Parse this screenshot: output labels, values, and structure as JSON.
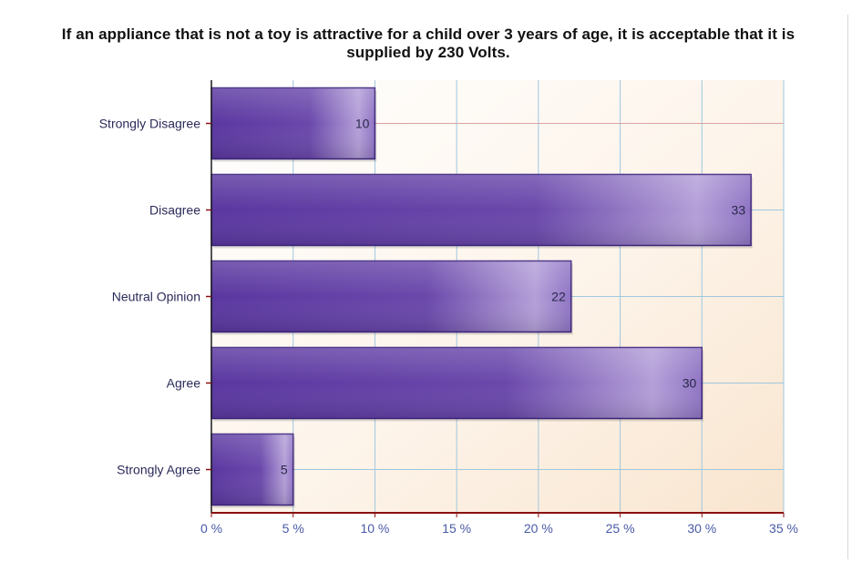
{
  "chart_data": {
    "type": "bar",
    "orientation": "horizontal",
    "title": "If an appliance that is not a toy is attractive for a child over 3 years of age, it is acceptable that it is supplied by 230 Volts.",
    "categories": [
      "Strongly Disagree",
      "Disagree",
      "Neutral Opinion",
      "Agree",
      "Strongly Agree"
    ],
    "values": [
      10,
      33,
      22,
      30,
      5
    ],
    "value_labels": [
      "10",
      "33",
      "22",
      "30",
      "5"
    ],
    "xlim": [
      0,
      35
    ],
    "xticks": [
      0,
      5,
      10,
      15,
      20,
      25,
      30,
      35
    ],
    "xtick_labels": [
      "0 %",
      "5 %",
      "10 %",
      "15 %",
      "20 %",
      "25 %",
      "30 %",
      "35 %"
    ],
    "grid": true,
    "legend": "none",
    "bar_color": "#5b3a9a",
    "grid_color": "#9fc7df",
    "axis_color": "#8a1010"
  }
}
